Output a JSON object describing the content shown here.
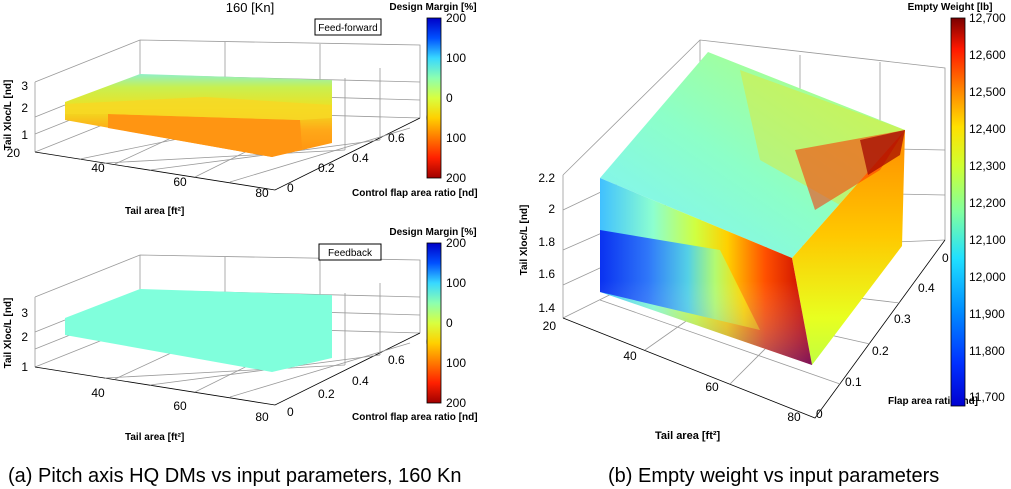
{
  "figure": {
    "caption_a": "(a)  Pitch axis HQ DMs vs input parameters, 160 Kn",
    "caption_b": "(b) Empty weight vs input parameters"
  },
  "chart_data": [
    {
      "type": "surface3d",
      "title": "160 [Kn]",
      "annotation": "Feed-forward",
      "xlabel": "Tail area [ft²]",
      "ylabel": "Control flap area ratio [nd]",
      "zlabel": "Tail Xloc/L [nd]",
      "x_ticks": [
        "20",
        "40",
        "60",
        "80"
      ],
      "y_ticks": [
        "0",
        "0.2",
        "0.4",
        "0.6"
      ],
      "z_ticks": [
        "1",
        "2",
        "3"
      ],
      "xlim": [
        20,
        80
      ],
      "ylim": [
        0,
        0.6
      ],
      "zlim": [
        1,
        3
      ],
      "colorbar": {
        "label": "Design Margin [%]",
        "ticks": [
          "200",
          "100",
          "0",
          "100",
          "200"
        ],
        "range": [
          -200,
          200
        ],
        "colormap": "jet-reversed"
      },
      "surface": {
        "x_range": [
          20,
          80
        ],
        "y_range": [
          0,
          0.6
        ],
        "z_range": [
          1.5,
          2.5
        ],
        "design_margin_regions": [
          {
            "region": "top edge (high tail Xloc)",
            "value": 100
          },
          {
            "region": "upper band",
            "value": 0
          },
          {
            "region": "middle band",
            "value": -50
          },
          {
            "region": "lower band",
            "value": -120
          }
        ]
      }
    },
    {
      "type": "surface3d",
      "annotation": "Feedback",
      "xlabel": "Tail area [ft²]",
      "ylabel": "Control flap area ratio [nd]",
      "zlabel": "Tail Xloc/L [nd]",
      "x_ticks": [
        "20",
        "40",
        "60",
        "80"
      ],
      "y_ticks": [
        "0",
        "0.2",
        "0.4",
        "0.6"
      ],
      "z_ticks": [
        "1",
        "2",
        "3"
      ],
      "xlim": [
        20,
        80
      ],
      "ylim": [
        0,
        0.6
      ],
      "zlim": [
        1,
        3
      ],
      "colorbar": {
        "label": "Design Margin [%]",
        "ticks": [
          "200",
          "100",
          "0",
          "100",
          "200"
        ],
        "range": [
          -200,
          200
        ],
        "colormap": "jet-reversed"
      },
      "surface": {
        "x_range": [
          20,
          80
        ],
        "y_range": [
          0,
          0.6
        ],
        "z_range": [
          1.5,
          2.5
        ],
        "design_margin_uniform": 75
      }
    },
    {
      "type": "volume3d",
      "xlabel": "Tail area [ft²]",
      "ylabel": "Flap area ratio [nd]",
      "zlabel": "Tail Xloc/L [nd]",
      "x_ticks": [
        "20",
        "40",
        "60",
        "80"
      ],
      "y_ticks": [
        "0",
        "0.1",
        "0.2",
        "0.3",
        "0.4"
      ],
      "z_ticks": [
        "1.4",
        "1.6",
        "1.8",
        "2",
        "2.2"
      ],
      "xlim": [
        20,
        80
      ],
      "ylim": [
        0,
        0.5
      ],
      "zlim": [
        1.4,
        2.2
      ],
      "colorbar": {
        "label": "Empty Weight [lb]",
        "ticks": [
          "12,700",
          "12,600",
          "12,500",
          "12,400",
          "12,300",
          "12,200",
          "12,100",
          "12,000",
          "11,900",
          "11,800",
          "11,700"
        ],
        "range": [
          11680,
          12710
        ],
        "colormap": "jet"
      },
      "volume": {
        "x_range": [
          20,
          80
        ],
        "y_range": [
          0,
          0.5
        ],
        "z_range": [
          1.5,
          2.2
        ],
        "empty_weight_min": 11700,
        "empty_weight_max": 12700,
        "trend": "Empty weight increases with tail area and with tail Xloc/L"
      }
    }
  ]
}
